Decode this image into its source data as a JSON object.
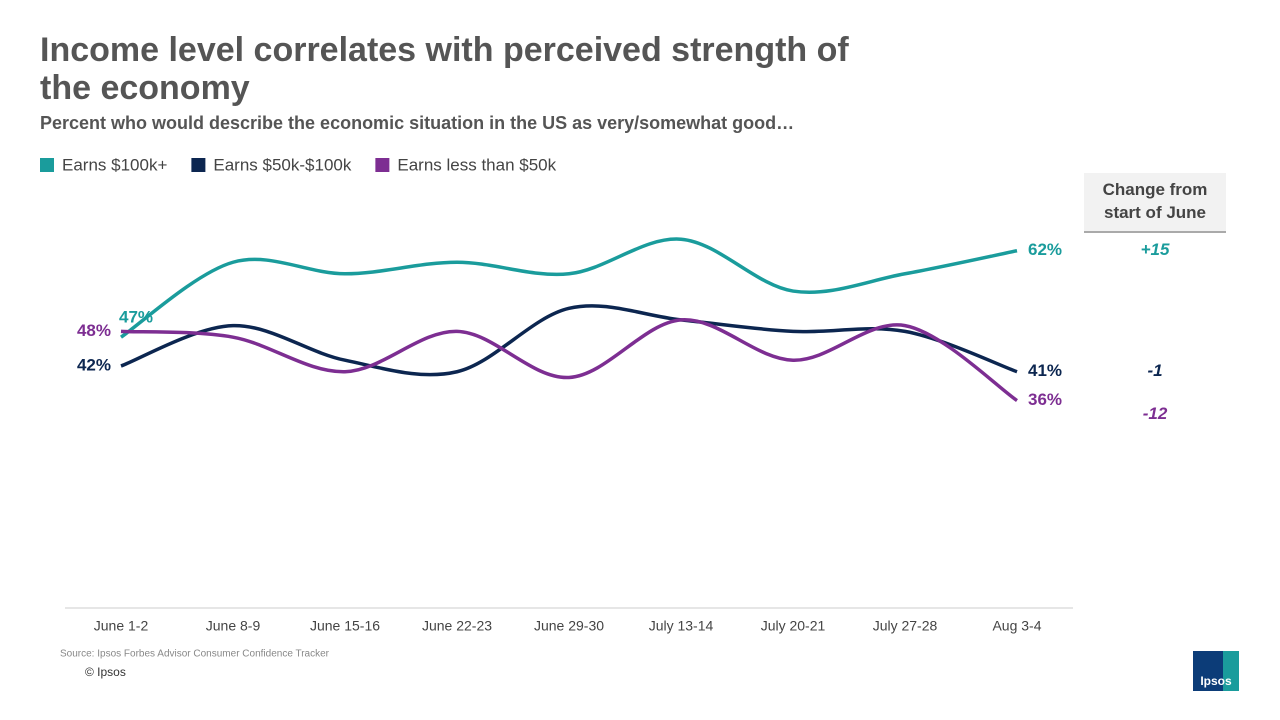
{
  "chart_data": {
    "type": "line",
    "title": "Income level correlates with perceived strength of the economy",
    "subtitle": "Percent who would describe the economic situation in the US as very/somewhat good…",
    "categories": [
      "June 1-2",
      "June 8-9",
      "June 15-16",
      "June 22-23",
      "June 29-30",
      "July 13-14",
      "July 20-21",
      "July 27-28",
      "Aug 3-4"
    ],
    "ylim": [
      0,
      80
    ],
    "change_header": "Change from start of June",
    "series": [
      {
        "name": "Earns $100k+",
        "color": "#1a9c9c",
        "values": [
          47,
          60,
          58,
          60,
          58,
          64,
          55,
          58,
          62
        ],
        "value_labels": [
          "47%",
          null,
          null,
          null,
          null,
          null,
          null,
          null,
          "62%"
        ],
        "change": 15,
        "change_label": "+15"
      },
      {
        "name": "Earns $50k-$100k",
        "color": "#0c2650",
        "values": [
          42,
          49,
          43,
          41,
          52,
          50,
          48,
          48,
          41
        ],
        "value_labels": [
          "42%",
          null,
          null,
          null,
          null,
          null,
          null,
          null,
          "41%"
        ],
        "change": -1,
        "change_label": "-1"
      },
      {
        "name": "Earns less than $50k",
        "color": "#7d2e92",
        "values": [
          48,
          47,
          41,
          48,
          40,
          50,
          43,
          49,
          36
        ],
        "value_labels": [
          "48%",
          null,
          null,
          null,
          null,
          null,
          null,
          null,
          "36%"
        ],
        "change": -12,
        "change_label": "-12"
      }
    ],
    "source": "Source: Ipsos Forbes Advisor Consumer Confidence Tracker",
    "copyright": "© Ipsos",
    "logo": "Ipsos"
  }
}
